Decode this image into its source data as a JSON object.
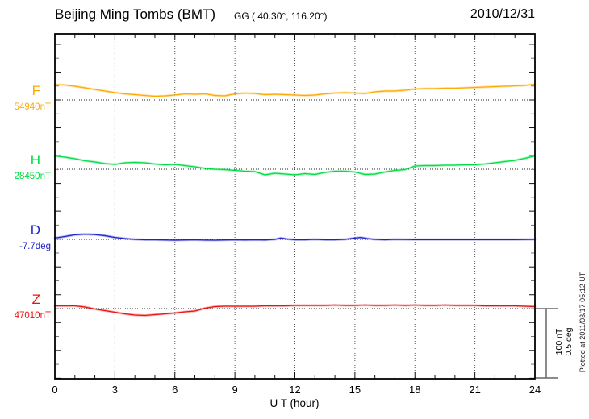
{
  "header": {
    "title": "Beijing Ming Tombs (BMT)",
    "coords": "GG ( 40.30°, 116.20°)",
    "date": "2010/12/31"
  },
  "x_axis": {
    "label": "U T (hour)"
  },
  "scale_bar": {
    "label_line1": "100 nT",
    "label_line2": "0.5 deg",
    "nT_per_div": 100,
    "deg_per_div": 0.5
  },
  "footer_note": "Plotted at 2011/03/17 05:12 UT",
  "chart_data": {
    "type": "line",
    "title": "Beijing Ming Tombs (BMT)",
    "station_coords_geographic": "GG ( 40.30°, 116.20°)",
    "date": "2010/12/31",
    "xlabel": "U T (hour)",
    "xlim": [
      0,
      24
    ],
    "x_ticks_major": [
      0,
      3,
      6,
      9,
      12,
      15,
      18,
      21,
      24
    ],
    "grid_hours": [
      3,
      6,
      9,
      12,
      15,
      18,
      21
    ],
    "grid": "dotted vertical lines every 3 h; dotted horizontal baseline per trace",
    "legend_position": "left margin trace labels",
    "scale": {
      "nT_per_division": 100,
      "deg_per_division": 0.5
    },
    "series": [
      {
        "name": "F",
        "axis_label": "F",
        "baseline_label": "54940nT",
        "unit": "nT",
        "baseline": 54940,
        "color": "#FFAA00",
        "points": [
          [
            0,
            21.8
          ],
          [
            0.5,
            21.3
          ],
          [
            1,
            19.5
          ],
          [
            1.5,
            17.2
          ],
          [
            2,
            14.9
          ],
          [
            2.5,
            12.6
          ],
          [
            3,
            10.3
          ],
          [
            3.5,
            8.6
          ],
          [
            4,
            7.5
          ],
          [
            4.5,
            6.3
          ],
          [
            5,
            5.2
          ],
          [
            5.5,
            5.7
          ],
          [
            6,
            6.9
          ],
          [
            6.5,
            8.6
          ],
          [
            7,
            8
          ],
          [
            7.5,
            8.6
          ],
          [
            8,
            6.3
          ],
          [
            8.5,
            5.7
          ],
          [
            9,
            8.6
          ],
          [
            9.5,
            9.8
          ],
          [
            10,
            9.2
          ],
          [
            10.5,
            7.5
          ],
          [
            11,
            8
          ],
          [
            11.5,
            7.5
          ],
          [
            12,
            6.9
          ],
          [
            12.5,
            6.3
          ],
          [
            13,
            6.9
          ],
          [
            13.5,
            8.6
          ],
          [
            14,
            9.8
          ],
          [
            14.5,
            10.3
          ],
          [
            15,
            9.8
          ],
          [
            15.5,
            9.2
          ],
          [
            16,
            11.5
          ],
          [
            16.5,
            12.6
          ],
          [
            17,
            12.6
          ],
          [
            17.5,
            13.8
          ],
          [
            18,
            15.5
          ],
          [
            18.5,
            16.1
          ],
          [
            19,
            16.1
          ],
          [
            19.5,
            16.7
          ],
          [
            20,
            16.7
          ],
          [
            20.5,
            17.2
          ],
          [
            21,
            17.8
          ],
          [
            21.5,
            18.4
          ],
          [
            22,
            19
          ],
          [
            22.5,
            19.5
          ],
          [
            23,
            20.1
          ],
          [
            23.5,
            20.7
          ],
          [
            24,
            22.4
          ]
        ]
      },
      {
        "name": "H",
        "axis_label": "H",
        "baseline_label": "28450nT",
        "unit": "nT",
        "baseline": 28450,
        "color": "#00DD44",
        "points": [
          [
            0,
            19
          ],
          [
            0.5,
            17.2
          ],
          [
            1,
            14.9
          ],
          [
            1.5,
            12.1
          ],
          [
            2,
            10.3
          ],
          [
            2.5,
            8
          ],
          [
            3,
            6.9
          ],
          [
            3.5,
            9.2
          ],
          [
            4,
            9.8
          ],
          [
            4.5,
            9.2
          ],
          [
            5,
            7.5
          ],
          [
            5.5,
            6.3
          ],
          [
            6,
            6.9
          ],
          [
            6.5,
            5.2
          ],
          [
            7,
            3.4
          ],
          [
            7.5,
            1.1
          ],
          [
            8,
            0
          ],
          [
            8.5,
            -0.6
          ],
          [
            9,
            -1.7
          ],
          [
            9.5,
            -2.9
          ],
          [
            10,
            -3.4
          ],
          [
            10.5,
            -8
          ],
          [
            11,
            -5.7
          ],
          [
            11.5,
            -6.9
          ],
          [
            12,
            -8
          ],
          [
            12.5,
            -6.3
          ],
          [
            13,
            -7.5
          ],
          [
            13.5,
            -4.6
          ],
          [
            14,
            -2.9
          ],
          [
            14.5,
            -2.9
          ],
          [
            15,
            -4
          ],
          [
            15.5,
            -7.5
          ],
          [
            16,
            -6.9
          ],
          [
            16.5,
            -4
          ],
          [
            17,
            -1.7
          ],
          [
            17.5,
            -0.6
          ],
          [
            17.8,
            2.3
          ],
          [
            18,
            4.6
          ],
          [
            18.5,
            5.2
          ],
          [
            19,
            5.2
          ],
          [
            19.5,
            5.7
          ],
          [
            20,
            5.7
          ],
          [
            20.5,
            6.3
          ],
          [
            21,
            6.3
          ],
          [
            21.5,
            7.5
          ],
          [
            22,
            9.2
          ],
          [
            22.5,
            10.9
          ],
          [
            23,
            12.6
          ],
          [
            23.5,
            15.5
          ],
          [
            24,
            19
          ]
        ]
      },
      {
        "name": "D",
        "axis_label": "D",
        "baseline_label": "-7.7deg",
        "unit": "deg",
        "baseline": -7.7,
        "color": "#2222CC",
        "points": [
          [
            0,
            0.009
          ],
          [
            0.5,
            0.02
          ],
          [
            1,
            0.032
          ],
          [
            1.5,
            0.037
          ],
          [
            2,
            0.034
          ],
          [
            2.5,
            0.026
          ],
          [
            3,
            0.014
          ],
          [
            3.5,
            0.006
          ],
          [
            4,
            0
          ],
          [
            4.5,
            -0.003
          ],
          [
            5,
            -0.003
          ],
          [
            5.5,
            -0.004
          ],
          [
            6,
            -0.006
          ],
          [
            6.5,
            -0.004
          ],
          [
            7,
            -0.003
          ],
          [
            7.5,
            -0.005
          ],
          [
            8,
            -0.006
          ],
          [
            8.5,
            -0.004
          ],
          [
            9,
            -0.003
          ],
          [
            9.5,
            -0.004
          ],
          [
            10,
            -0.003
          ],
          [
            10.5,
            -0.004
          ],
          [
            11,
            0
          ],
          [
            11.3,
            0.009
          ],
          [
            11.6,
            0.003
          ],
          [
            12,
            -0.003
          ],
          [
            12.5,
            -0.003
          ],
          [
            13,
            0
          ],
          [
            13.5,
            -0.003
          ],
          [
            14,
            -0.003
          ],
          [
            14.5,
            0
          ],
          [
            15,
            0.009
          ],
          [
            15.3,
            0.014
          ],
          [
            15.6,
            0.006
          ],
          [
            16,
            0
          ],
          [
            16.5,
            -0.003
          ],
          [
            17,
            0
          ],
          [
            18,
            -0.002
          ],
          [
            19,
            -0.002
          ],
          [
            20,
            -0.002
          ],
          [
            21,
            -0.002
          ],
          [
            22,
            -0.002
          ],
          [
            23,
            -0.002
          ],
          [
            24,
            0
          ]
        ]
      },
      {
        "name": "Z",
        "axis_label": "Z",
        "baseline_label": "47010nT",
        "unit": "nT",
        "baseline": 47010,
        "color": "#EE1111",
        "points": [
          [
            0,
            4
          ],
          [
            0.5,
            4
          ],
          [
            1,
            4
          ],
          [
            1.5,
            2.3
          ],
          [
            2,
            -0.6
          ],
          [
            2.5,
            -2.9
          ],
          [
            3,
            -5.2
          ],
          [
            3.5,
            -7.5
          ],
          [
            4,
            -9.2
          ],
          [
            4.5,
            -9.8
          ],
          [
            5,
            -8.6
          ],
          [
            5.5,
            -7.5
          ],
          [
            6,
            -6.3
          ],
          [
            6.5,
            -4.6
          ],
          [
            7,
            -3.4
          ],
          [
            7.5,
            0.6
          ],
          [
            8,
            2.9
          ],
          [
            8.5,
            3.4
          ],
          [
            9,
            3.4
          ],
          [
            9.5,
            3.4
          ],
          [
            10,
            3.4
          ],
          [
            10.5,
            4
          ],
          [
            11,
            4
          ],
          [
            11.5,
            4
          ],
          [
            12,
            4.6
          ],
          [
            12.5,
            4.6
          ],
          [
            13,
            4.6
          ],
          [
            13.5,
            4.6
          ],
          [
            14,
            5.2
          ],
          [
            14.5,
            4.6
          ],
          [
            15,
            4.6
          ],
          [
            15.5,
            5.2
          ],
          [
            16,
            4.6
          ],
          [
            16.5,
            4.6
          ],
          [
            17,
            5.2
          ],
          [
            17.5,
            4.6
          ],
          [
            18,
            5.2
          ],
          [
            18.5,
            4.6
          ],
          [
            19,
            4.6
          ],
          [
            19.5,
            5.2
          ],
          [
            20,
            4.6
          ],
          [
            20.5,
            4.6
          ],
          [
            21,
            4.6
          ],
          [
            21.5,
            4
          ],
          [
            22,
            4
          ],
          [
            22.5,
            4
          ],
          [
            23,
            4
          ],
          [
            23.5,
            3.4
          ],
          [
            24,
            2.9
          ]
        ]
      }
    ]
  }
}
